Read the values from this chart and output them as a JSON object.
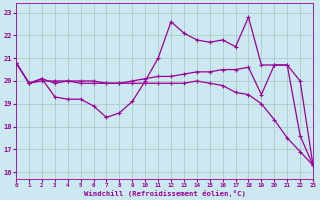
{
  "xlabel": "Windchill (Refroidissement éolien,°C)",
  "bg_color": "#cce8f0",
  "line_color": "#990099",
  "grid_color": "#aaccc8",
  "x_ticks": [
    0,
    1,
    2,
    3,
    4,
    5,
    6,
    7,
    8,
    9,
    10,
    11,
    12,
    13,
    14,
    15,
    16,
    17,
    18,
    19,
    20,
    21,
    22,
    23
  ],
  "y_ticks": [
    16,
    17,
    18,
    19,
    20,
    21,
    22,
    23
  ],
  "xlim": [
    0,
    23
  ],
  "ylim": [
    15.7,
    23.4
  ],
  "series": [
    {
      "x": [
        0,
        1,
        2,
        3,
        4,
        5,
        6,
        7,
        8,
        9,
        10,
        11,
        12,
        13,
        14,
        15,
        16,
        17,
        18,
        19,
        20,
        21,
        22,
        23
      ],
      "y": [
        20.8,
        19.9,
        20.0,
        20.0,
        20.0,
        19.9,
        19.9,
        19.9,
        19.9,
        19.9,
        19.9,
        19.9,
        19.9,
        19.9,
        20.0,
        19.9,
        19.8,
        19.5,
        19.4,
        19.0,
        18.3,
        17.5,
        16.9,
        16.3
      ],
      "marker": "+",
      "markersize": 3.5,
      "linewidth": 0.9
    },
    {
      "x": [
        0,
        1,
        2,
        3,
        4,
        5,
        6,
        7,
        8,
        9,
        10,
        11,
        12,
        13,
        14,
        15,
        16,
        17,
        18,
        19,
        20,
        21,
        22,
        23
      ],
      "y": [
        20.8,
        19.9,
        20.1,
        19.9,
        20.0,
        20.0,
        20.0,
        19.9,
        19.9,
        20.0,
        20.1,
        20.2,
        20.2,
        20.3,
        20.4,
        20.4,
        20.5,
        20.5,
        20.6,
        19.4,
        20.7,
        20.7,
        20.0,
        16.3
      ],
      "marker": "+",
      "markersize": 3.5,
      "linewidth": 0.9
    },
    {
      "x": [
        0,
        1,
        2,
        3,
        4,
        5,
        6,
        7,
        8,
        9,
        10,
        11,
        12,
        13,
        14,
        15,
        16,
        17,
        18,
        19,
        20,
        21,
        22,
        23
      ],
      "y": [
        20.8,
        19.9,
        20.1,
        19.3,
        19.2,
        19.2,
        18.9,
        18.4,
        18.6,
        19.1,
        20.0,
        21.0,
        22.6,
        22.1,
        21.8,
        21.7,
        21.8,
        21.5,
        22.8,
        20.7,
        20.7,
        20.7,
        17.6,
        16.3
      ],
      "marker": "+",
      "markersize": 3.5,
      "linewidth": 0.9
    }
  ]
}
